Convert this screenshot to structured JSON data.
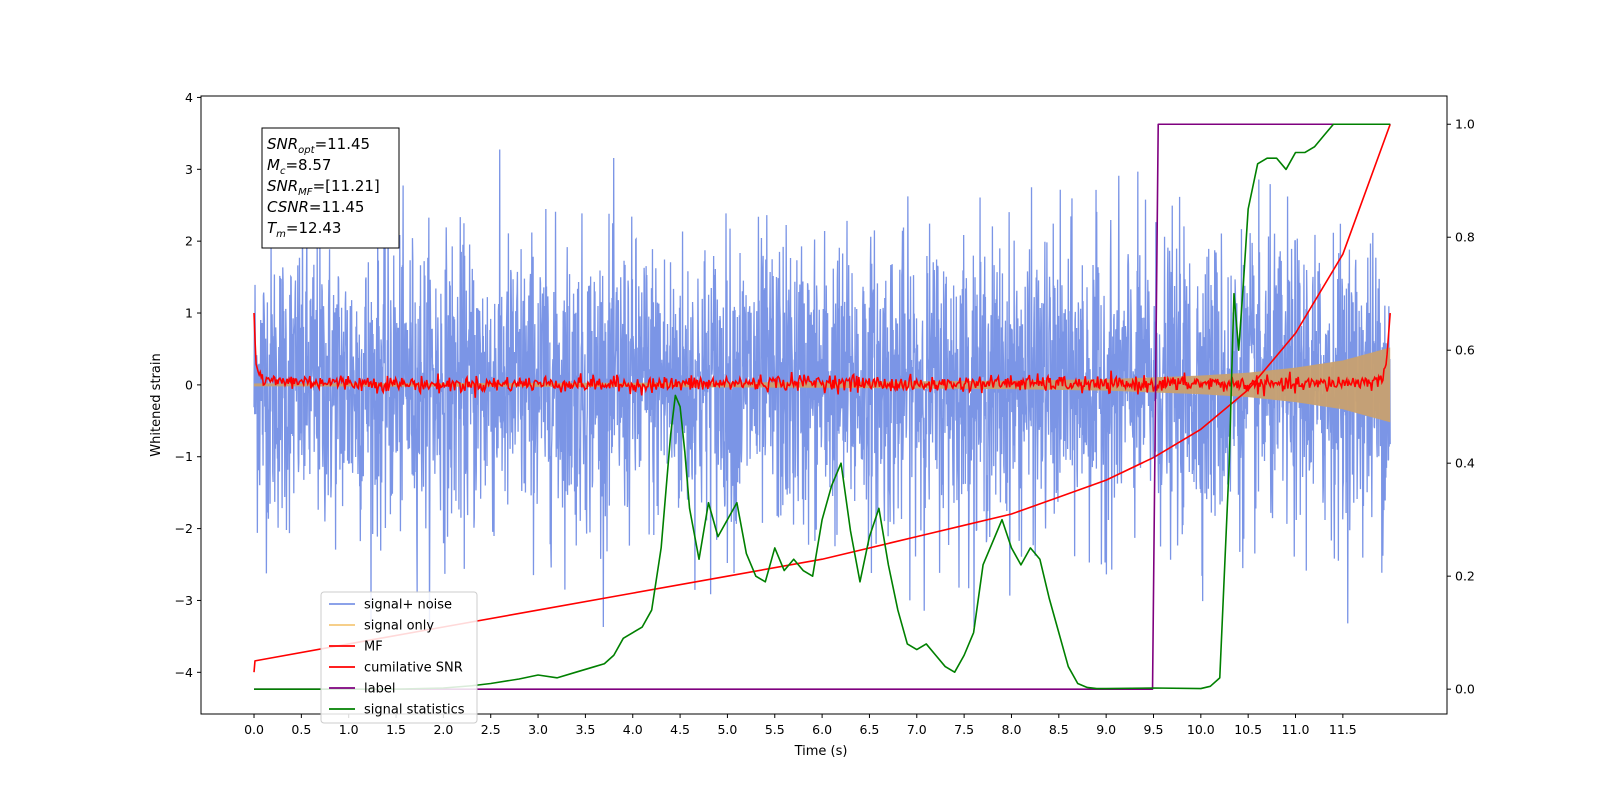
{
  "chart_data": {
    "type": "line",
    "xlabel": "Time (s)",
    "ylabel": "Whitened strain",
    "xlim": [
      -0.56,
      12.6
    ],
    "ylim": [
      -4.58,
      4.02
    ],
    "y2lim": [
      -0.044,
      1.05
    ],
    "x_ticks": [
      0.0,
      0.5,
      1.0,
      1.5,
      2.0,
      2.5,
      3.0,
      3.5,
      4.0,
      4.5,
      5.0,
      5.5,
      6.0,
      6.5,
      7.0,
      7.5,
      8.0,
      8.5,
      9.0,
      9.5,
      10.0,
      10.5,
      11.0,
      11.5
    ],
    "x_tick_labels": [
      "0.0",
      "0.5",
      "1.0",
      "1.5",
      "2.0",
      "2.5",
      "3.0",
      "3.5",
      "4.0",
      "4.5",
      "5.0",
      "5.5",
      "6.0",
      "6.5",
      "7.0",
      "7.5",
      "8.0",
      "8.5",
      "9.0",
      "9.5",
      "10.0",
      "10.5",
      "11.0",
      "11.5"
    ],
    "y_ticks": [
      4,
      3,
      2,
      1,
      0,
      -1,
      -2,
      -3,
      -4
    ],
    "y_tick_labels": [
      "4",
      "3",
      "2",
      "1",
      "0",
      "−1",
      "−2",
      "−3",
      "−4"
    ],
    "y2_ticks": [
      1.0,
      0.8,
      0.6,
      0.4,
      0.2,
      0.0
    ],
    "y2_tick_labels": [
      "1.0",
      "0.8",
      "0.6",
      "0.4",
      "0.2",
      "0.0"
    ],
    "annotation": [
      {
        "main": "SNR",
        "sub": "opt",
        "rest": "=11.45"
      },
      {
        "main": "M",
        "sub": "c",
        "rest": "=8.57"
      },
      {
        "main": "SNR",
        "sub": "MF",
        "rest": "=[11.21]"
      },
      {
        "main": "CSNR",
        "sub": "",
        "rest": "=11.45"
      },
      {
        "main": "T",
        "sub": "m",
        "rest": "=12.43"
      }
    ],
    "legend_position": "lower-left",
    "legend": [
      {
        "label": "signal+ noise",
        "color": "#7b95e6"
      },
      {
        "label": "signal only",
        "color": "#f5c87a"
      },
      {
        "label": "MF",
        "color": "#ff0000"
      },
      {
        "label": "cumilative SNR",
        "color": "#ff0000"
      },
      {
        "label": "label",
        "color": "#7f007f"
      },
      {
        "label": "signal statistics",
        "color": "#008000"
      }
    ],
    "series": [
      {
        "key": "signal_noise",
        "axis": "left",
        "color": "#7b95e6",
        "description_range": {
          "t_start": 0.0,
          "t_end": 12.0,
          "amplitude_std": 1.0,
          "min": -3.37,
          "max": 3.63
        }
      },
      {
        "key": "signal_only",
        "axis": "left",
        "color": "#c8a070",
        "envelope": {
          "t": [
            0.0,
            2.0,
            4.0,
            6.0,
            8.0,
            9.0,
            10.0,
            10.5,
            11.0,
            11.5,
            12.0
          ],
          "amp": [
            0.02,
            0.025,
            0.03,
            0.04,
            0.06,
            0.08,
            0.13,
            0.17,
            0.24,
            0.34,
            0.52
          ]
        }
      },
      {
        "key": "mf",
        "axis": "left",
        "color": "#ff0000",
        "x": [
          0.0,
          0.02,
          0.05,
          0.1,
          0.5,
          1.0,
          2.0,
          3.0,
          4.0,
          5.0,
          6.0,
          7.0,
          8.0,
          9.0,
          10.0,
          11.0,
          11.9,
          11.96,
          12.0
        ],
        "y": [
          1.0,
          0.3,
          0.15,
          0.05,
          0.05,
          0.03,
          0.0,
          0.02,
          0.0,
          0.02,
          0.04,
          0.0,
          0.03,
          0.0,
          0.02,
          0.0,
          0.05,
          0.3,
          1.0
        ]
      },
      {
        "key": "cumulative_snr",
        "axis": "right",
        "color": "#ff0000",
        "x": [
          0.0,
          0.01,
          1.0,
          2.0,
          3.0,
          4.0,
          5.0,
          6.0,
          7.0,
          7.5,
          8.0,
          8.5,
          9.0,
          9.5,
          10.0,
          10.5,
          11.0,
          11.5,
          12.0
        ],
        "y": [
          0.03,
          0.05,
          0.08,
          0.11,
          0.14,
          0.17,
          0.2,
          0.23,
          0.27,
          0.29,
          0.31,
          0.34,
          0.37,
          0.41,
          0.46,
          0.53,
          0.63,
          0.77,
          1.0
        ]
      },
      {
        "key": "label",
        "axis": "right",
        "color": "#7f007f",
        "x": [
          0.0,
          9.49,
          9.55,
          12.0
        ],
        "y": [
          0.0,
          0.0,
          1.0,
          1.0
        ]
      },
      {
        "key": "signal_statistics",
        "axis": "right",
        "color": "#008000",
        "x": [
          0.0,
          0.5,
          1.0,
          1.5,
          2.0,
          2.3,
          2.5,
          2.8,
          3.0,
          3.2,
          3.4,
          3.6,
          3.7,
          3.8,
          3.9,
          4.0,
          4.1,
          4.2,
          4.3,
          4.35,
          4.4,
          4.45,
          4.5,
          4.55,
          4.6,
          4.7,
          4.8,
          4.9,
          5.0,
          5.1,
          5.2,
          5.3,
          5.4,
          5.5,
          5.6,
          5.7,
          5.8,
          5.9,
          6.0,
          6.1,
          6.2,
          6.3,
          6.4,
          6.5,
          6.6,
          6.7,
          6.8,
          6.9,
          7.0,
          7.1,
          7.2,
          7.3,
          7.4,
          7.5,
          7.6,
          7.7,
          7.8,
          7.9,
          8.0,
          8.1,
          8.2,
          8.3,
          8.4,
          8.5,
          8.6,
          8.7,
          8.8,
          8.9,
          9.0,
          9.5,
          10.0,
          10.1,
          10.2,
          10.3,
          10.35,
          10.4,
          10.45,
          10.5,
          10.6,
          10.7,
          10.8,
          10.9,
          11.0,
          11.1,
          11.2,
          11.3,
          11.4,
          11.5,
          11.7,
          11.9,
          12.0
        ],
        "y": [
          0.0,
          0.0,
          0.0,
          0.0,
          0.002,
          0.006,
          0.01,
          0.018,
          0.025,
          0.02,
          0.03,
          0.04,
          0.045,
          0.06,
          0.09,
          0.1,
          0.11,
          0.14,
          0.25,
          0.35,
          0.45,
          0.52,
          0.5,
          0.42,
          0.32,
          0.23,
          0.33,
          0.27,
          0.3,
          0.33,
          0.24,
          0.2,
          0.19,
          0.25,
          0.21,
          0.23,
          0.21,
          0.2,
          0.3,
          0.36,
          0.4,
          0.28,
          0.19,
          0.27,
          0.32,
          0.22,
          0.14,
          0.08,
          0.07,
          0.08,
          0.06,
          0.04,
          0.03,
          0.06,
          0.1,
          0.22,
          0.26,
          0.3,
          0.25,
          0.22,
          0.25,
          0.23,
          0.16,
          0.1,
          0.04,
          0.01,
          0.003,
          0.001,
          0.001,
          0.002,
          0.001,
          0.005,
          0.02,
          0.4,
          0.7,
          0.6,
          0.72,
          0.85,
          0.93,
          0.94,
          0.94,
          0.92,
          0.95,
          0.95,
          0.96,
          0.98,
          1.0,
          1.0,
          1.0,
          1.0,
          1.0
        ]
      }
    ]
  }
}
